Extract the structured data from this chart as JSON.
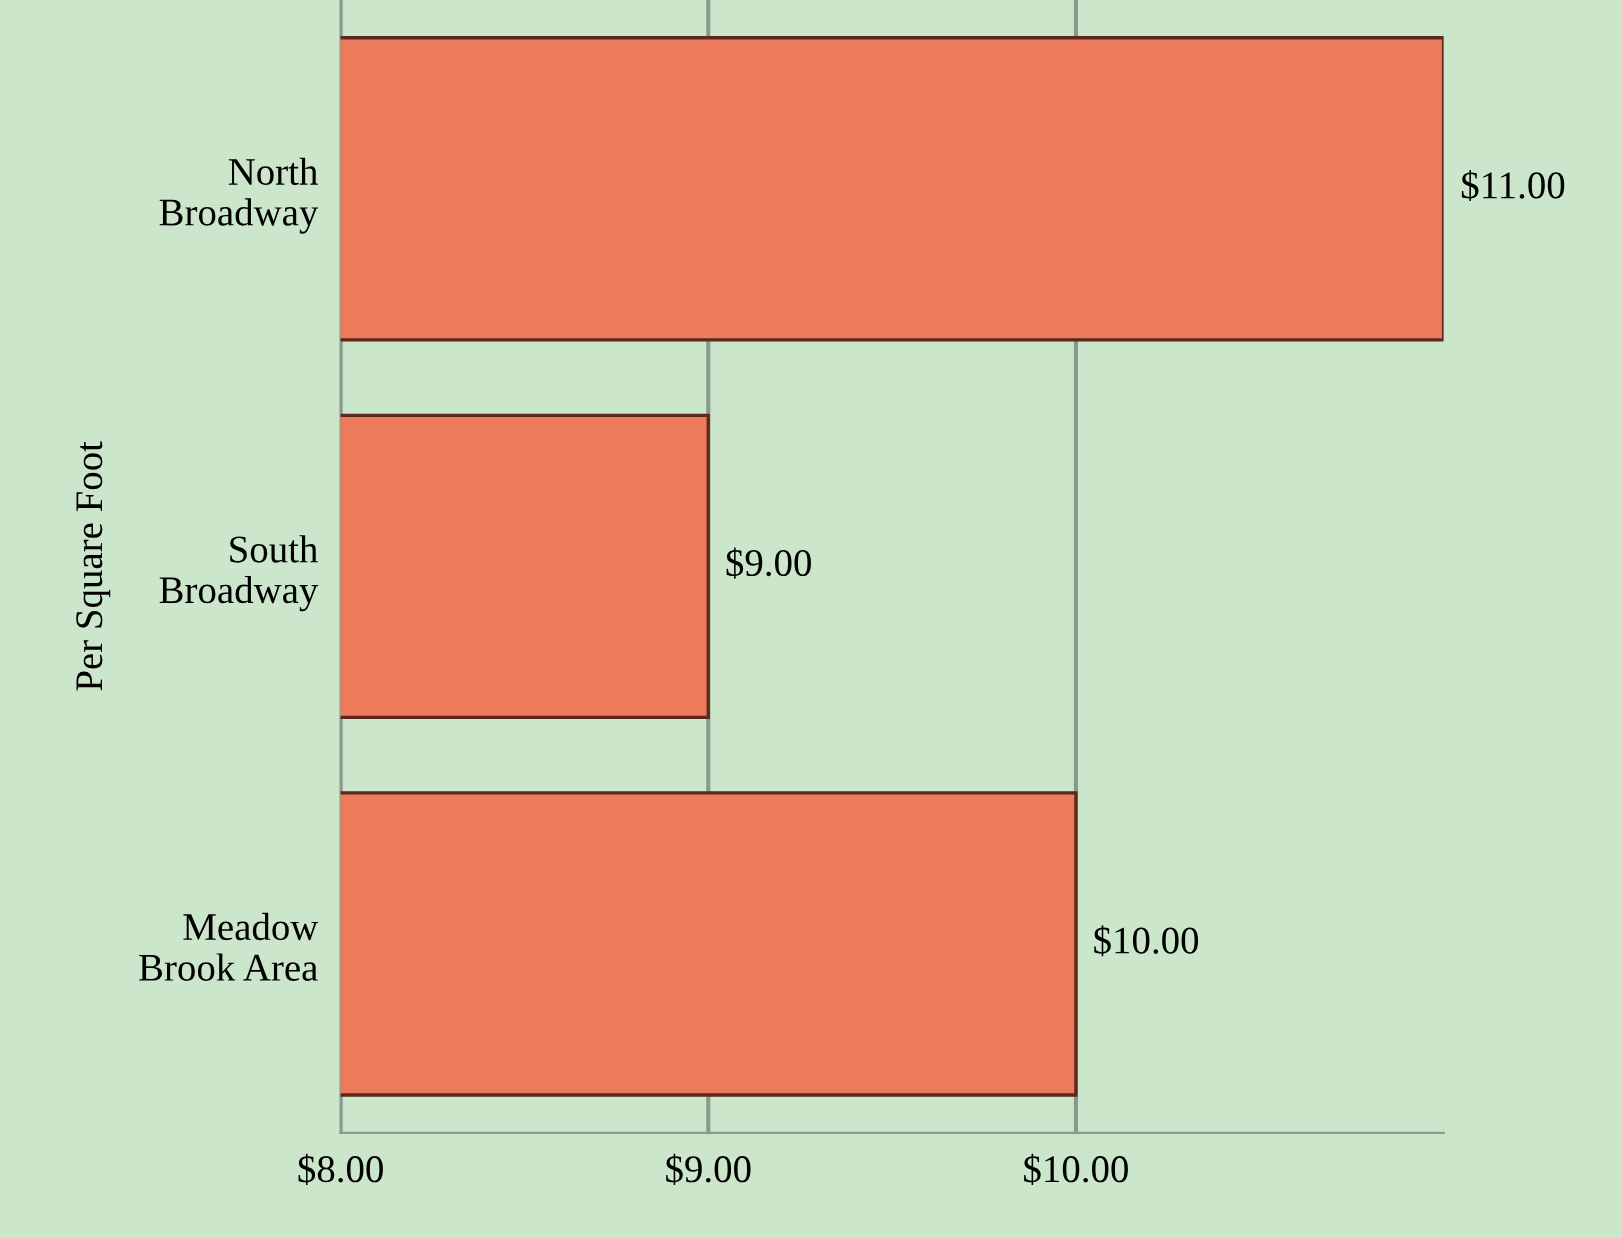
{
  "chart_data": {
    "type": "bar",
    "orientation": "horizontal",
    "ylabel": "Per Square Foot",
    "categories": [
      "North\nBroadway",
      "South\nBroadway",
      "Meadow\nBrook Area"
    ],
    "values": [
      11,
      9,
      10
    ],
    "color": "#ee7a5c",
    "value_labels": [
      "$11.00",
      "$9.00",
      "$10.00"
    ],
    "xlim": [
      8,
      11
    ],
    "xticks": [
      {
        "value": 8,
        "label": "$8.00"
      },
      {
        "value": 9,
        "label": "$9.00"
      },
      {
        "value": 10,
        "label": "$10.00"
      }
    ],
    "grid": "x"
  }
}
